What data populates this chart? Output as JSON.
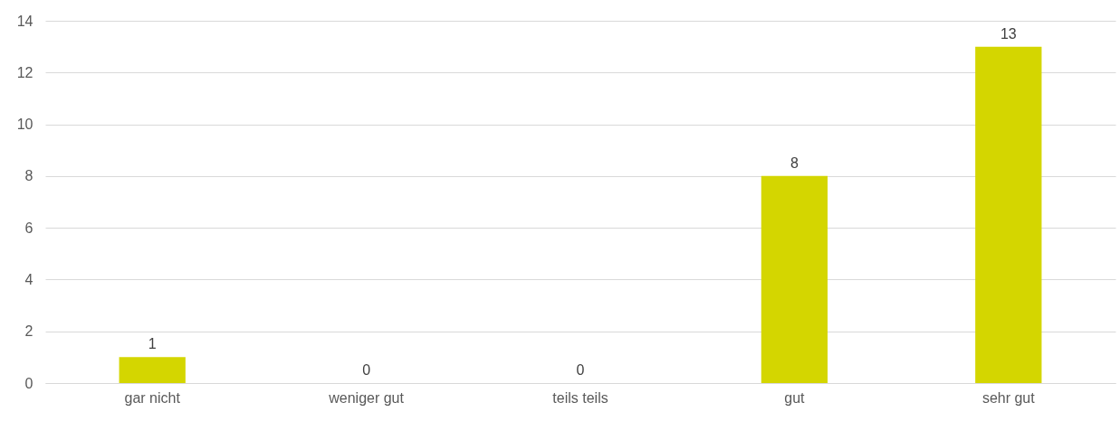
{
  "chart_data": {
    "type": "bar",
    "categories": [
      "gar nicht",
      "weniger gut",
      "teils teils",
      "gut",
      "sehr gut"
    ],
    "values": [
      1,
      0,
      0,
      8,
      13
    ],
    "color": "#d4d600",
    "ylim": [
      0,
      14
    ],
    "yticks": [
      0,
      2,
      4,
      6,
      8,
      10,
      12,
      14
    ],
    "grid": "y",
    "data_labels": true
  }
}
